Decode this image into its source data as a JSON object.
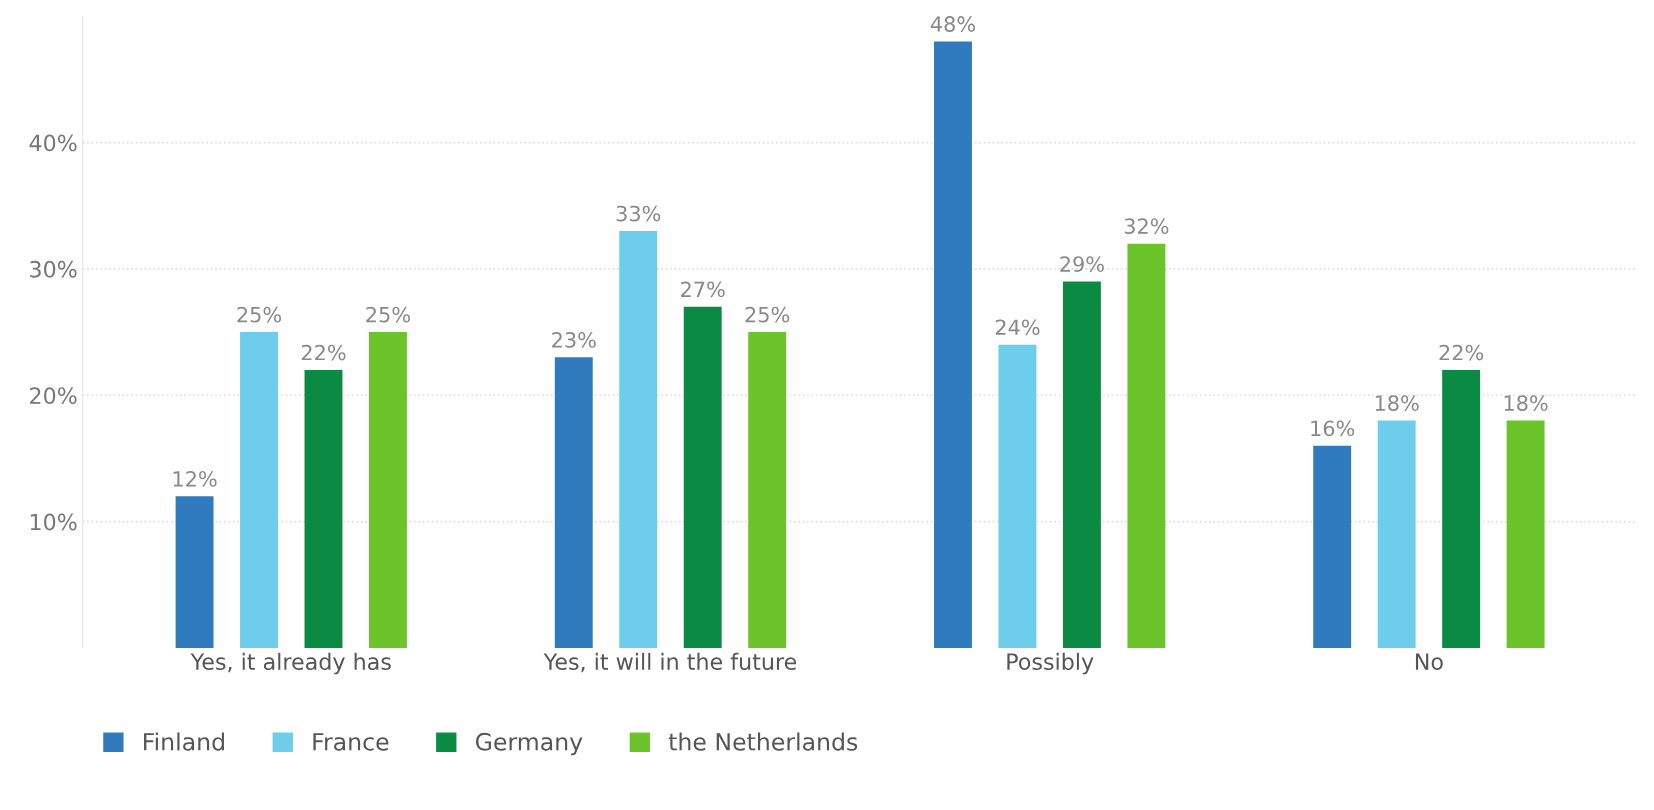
{
  "chart_data": {
    "type": "bar",
    "categories": [
      "Yes, it already has",
      "Yes, it will in the future",
      "Possibly",
      "No"
    ],
    "series": [
      {
        "name": "Finland",
        "color": "#2f7bbd",
        "values": [
          12,
          23,
          48,
          16
        ],
        "value_labels": [
          "12%",
          "23%",
          "48%",
          "16%"
        ]
      },
      {
        "name": "France",
        "color": "#6dcdea",
        "values": [
          25,
          33,
          24,
          18
        ],
        "value_labels": [
          "25%",
          "33%",
          "24%",
          "18%"
        ]
      },
      {
        "name": "Germany",
        "color": "#0b8a44",
        "values": [
          22,
          27,
          29,
          22
        ],
        "value_labels": [
          "22%",
          "27%",
          "29%",
          "22%"
        ]
      },
      {
        "name": "the Netherlands",
        "color": "#6cc42b",
        "values": [
          25,
          25,
          32,
          18
        ],
        "value_labels": [
          "25%",
          "25%",
          "32%",
          "18%"
        ]
      }
    ],
    "ylim": [
      0,
      50
    ],
    "yticks": [
      {
        "value": 10,
        "label": "10%"
      },
      {
        "value": 20,
        "label": "20%"
      },
      {
        "value": 30,
        "label": "30%"
      },
      {
        "value": 40,
        "label": "40%"
      }
    ],
    "grid": "y",
    "legend": "bottom left"
  }
}
